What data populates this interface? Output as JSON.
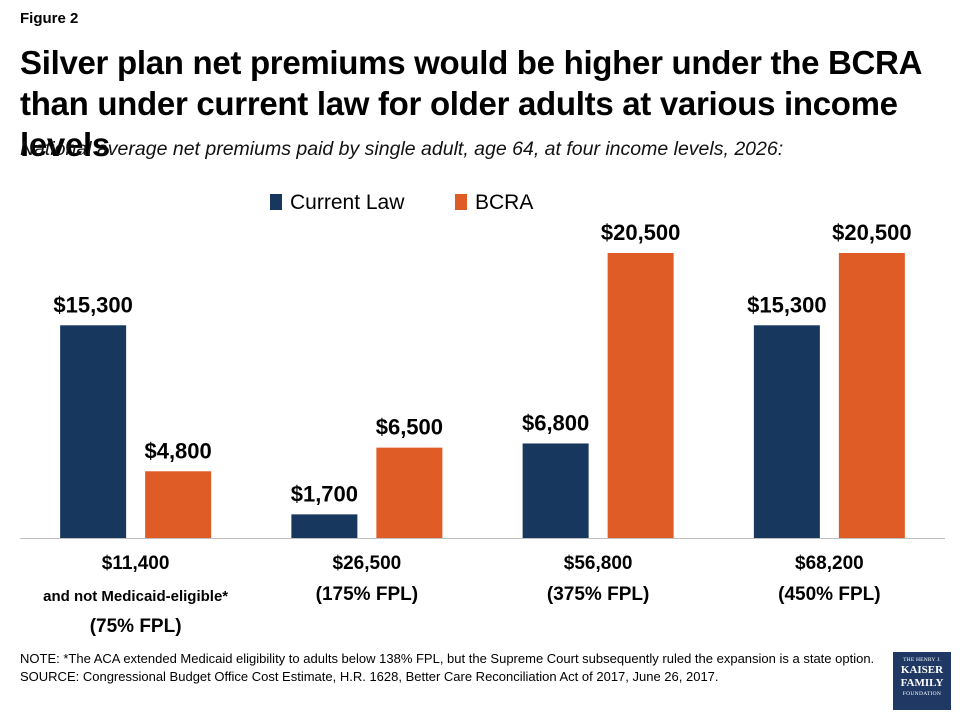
{
  "figure_label": "Figure 2",
  "title": "Silver plan net premiums would be higher under the BCRA than under current law for older adults at various income levels",
  "subtitle": "National average net premiums paid by single adult, age 64, at four income levels, 2026:",
  "chart_data": {
    "type": "bar",
    "categories": [
      [
        "$11,400",
        "and not Medicaid-eligible*",
        "(75% FPL)"
      ],
      [
        "$26,500",
        "(175% FPL)"
      ],
      [
        "$56,800",
        "(375% FPL)"
      ],
      [
        "$68,200",
        "(450% FPL)"
      ]
    ],
    "series": [
      {
        "name": "Current Law",
        "color": "#17375e",
        "values": [
          15300,
          1700,
          6800,
          15300
        ],
        "labels": [
          "$15,300",
          "$1,700",
          "$6,800",
          "$15,300"
        ]
      },
      {
        "name": "BCRA",
        "color": "#e05c27",
        "values": [
          4800,
          6500,
          20500,
          20500
        ],
        "labels": [
          "$4,800",
          "$6,500",
          "$20,500",
          "$20,500"
        ]
      }
    ],
    "ylim": [
      0,
      20500
    ],
    "legend_position": "top-center",
    "grid": false
  },
  "notes": {
    "note": "NOTE: *The ACA extended Medicaid eligibility to adults below 138% FPL, but the Supreme Court subsequently ruled the expansion is a state option.",
    "source": "SOURCE: Congressional Budget Office Cost Estimate, H.R. 1628, Better Care Reconciliation Act of 2017, June 26, 2017."
  },
  "logo": {
    "line1": "THE HENRY J.",
    "line2": "KAISER",
    "line3": "FAMILY",
    "line4": "FOUNDATION"
  }
}
